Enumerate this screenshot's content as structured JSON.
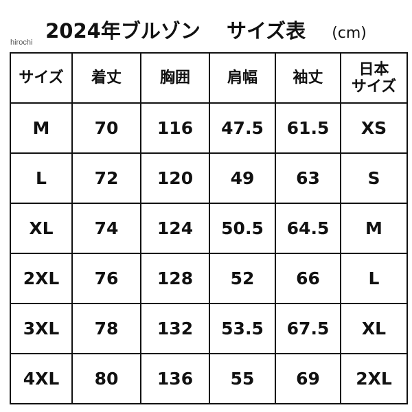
{
  "header": {
    "title": "2024年ブルゾン",
    "subtitle": "サイズ表",
    "unit": "(cm)",
    "watermark": "hirochi"
  },
  "table": {
    "columns": [
      "サイズ",
      "着丈",
      "胸囲",
      "肩幅",
      "袖丈",
      [
        "日本",
        "サイズ"
      ]
    ],
    "rows": [
      [
        "M",
        "70",
        "116",
        "47.5",
        "61.5",
        "XS"
      ],
      [
        "L",
        "72",
        "120",
        "49",
        "63",
        "S"
      ],
      [
        "XL",
        "74",
        "124",
        "50.5",
        "64.5",
        "M"
      ],
      [
        "2XL",
        "76",
        "128",
        "52",
        "66",
        "L"
      ],
      [
        "3XL",
        "78",
        "132",
        "53.5",
        "67.5",
        "XL"
      ],
      [
        "4XL",
        "80",
        "136",
        "55",
        "69",
        "2XL"
      ]
    ]
  }
}
